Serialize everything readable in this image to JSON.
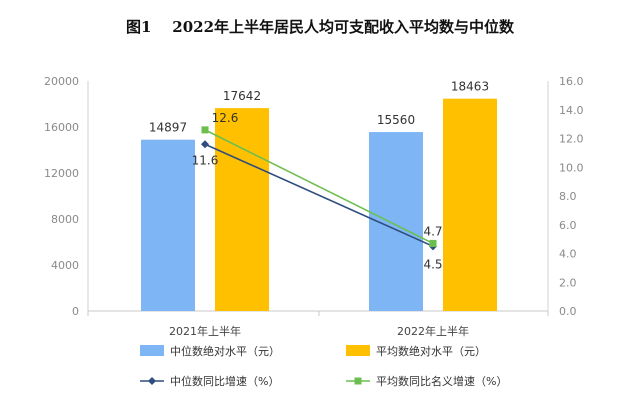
{
  "page": {
    "title": "图1    2022年上半年居民人均可支配收入平均数与中位数"
  },
  "chart_data": {
    "type": "bar",
    "categories": [
      "2021年上半年",
      "2022年上半年"
    ],
    "series": [
      {
        "name": "中位数绝对水平（元）",
        "kind": "bar",
        "axis": "left",
        "color": "#7eb6f5",
        "values": [
          14897,
          15560
        ],
        "labels": [
          "14897",
          "15560"
        ]
      },
      {
        "name": "平均数绝对水平（元）",
        "kind": "bar",
        "axis": "left",
        "color": "#ffc000",
        "values": [
          17642,
          18463
        ],
        "labels": [
          "17642",
          "18463"
        ]
      },
      {
        "name": "中位数同比增速（%）",
        "kind": "line",
        "axis": "right",
        "color": "#2f4d7e",
        "marker": "diamond",
        "values": [
          11.6,
          4.5
        ],
        "labels": [
          "11.6",
          "4.5"
        ]
      },
      {
        "name": "平均数同比名义增速（%）",
        "kind": "line",
        "axis": "right",
        "color": "#6cbf4f",
        "marker": "square",
        "values": [
          12.6,
          4.7
        ],
        "labels": [
          "12.6",
          "4.7"
        ]
      }
    ],
    "y_left": {
      "range": [
        0,
        20000
      ],
      "ticks": [
        "0",
        "4000",
        "8000",
        "12000",
        "16000",
        "20000"
      ]
    },
    "y_right": {
      "range": [
        0,
        16
      ],
      "ticks": [
        "0.0",
        "2.0",
        "4.0",
        "6.0",
        "8.0",
        "10.0",
        "12.0",
        "14.0",
        "16.0"
      ]
    },
    "grid": false,
    "legend_position": "bottom"
  }
}
